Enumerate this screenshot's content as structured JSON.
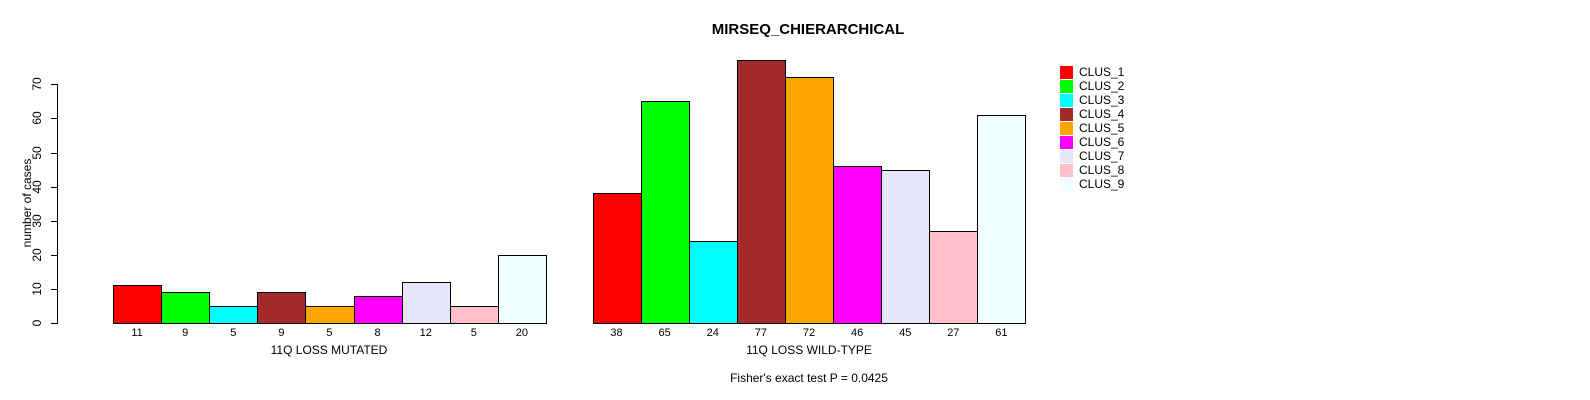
{
  "chart_data": {
    "type": "bar",
    "title": "MIRSEQ_CHIERARCHICAL",
    "ylabel": "number of cases",
    "ylim": [
      0,
      70
    ],
    "yticks": [
      0,
      10,
      20,
      30,
      40,
      50,
      60,
      70
    ],
    "grid": false,
    "legend_position": "right",
    "legend": [
      {
        "label": "CLUS_1",
        "color": "#FF0000"
      },
      {
        "label": "CLUS_2",
        "color": "#00FF00"
      },
      {
        "label": "CLUS_3",
        "color": "#00FFFF"
      },
      {
        "label": "CLUS_4",
        "color": "#A52A2A"
      },
      {
        "label": "CLUS_5",
        "color": "#FFA500"
      },
      {
        "label": "CLUS_6",
        "color": "#FF00FF"
      },
      {
        "label": "CLUS_7",
        "color": "#E6E6FA"
      },
      {
        "label": "CLUS_8",
        "color": "#FFC0CB"
      },
      {
        "label": "CLUS_9",
        "color": "#F0FFFF"
      }
    ],
    "groups": [
      {
        "label": "11Q LOSS MUTATED",
        "values": [
          11,
          9,
          5,
          9,
          5,
          8,
          12,
          5,
          20
        ]
      },
      {
        "label": "11Q LOSS WILD-TYPE",
        "values": [
          38,
          65,
          24,
          77,
          72,
          46,
          45,
          27,
          61
        ]
      }
    ],
    "annotation": "Fisher's exact test P = 0.0425",
    "colors": {
      "background": "#FFFFFF",
      "bar_border": "#000000",
      "text": "#000000"
    }
  }
}
